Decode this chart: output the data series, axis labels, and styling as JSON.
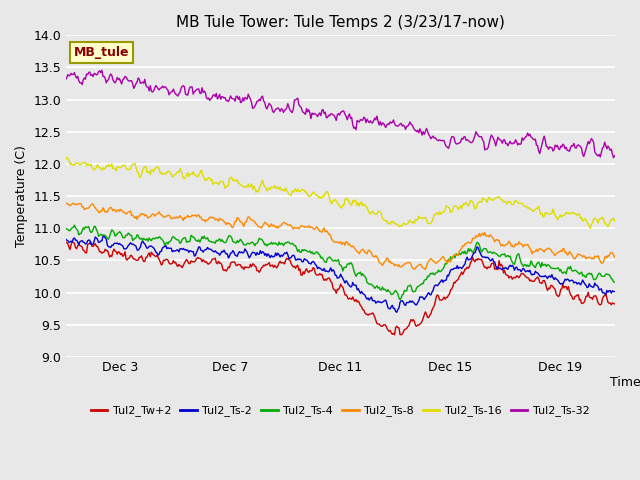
{
  "title": "MB Tule Tower: Tule Temps 2 (3/23/17-now)",
  "xlabel": "Time",
  "ylabel": "Temperature (C)",
  "ylim": [
    9.0,
    14.0
  ],
  "yticks": [
    9.0,
    9.5,
    10.0,
    10.5,
    11.0,
    11.5,
    12.0,
    12.5,
    13.0,
    13.5,
    14.0
  ],
  "xtick_labels": [
    "Dec 3",
    "Dec 7",
    "Dec 11",
    "Dec 15",
    "Dec 19"
  ],
  "xtick_positions": [
    2,
    6,
    10,
    14,
    18
  ],
  "n_points": 500,
  "fig_bg_color": "#e8e8e8",
  "plot_bg_color": "#e8e8e8",
  "grid_color": "#ffffff",
  "series": [
    {
      "label": "Tul2_Tw+2",
      "color": "#cc0000"
    },
    {
      "label": "Tul2_Ts-2",
      "color": "#0000cc"
    },
    {
      "label": "Tul2_Ts-4",
      "color": "#00aa00"
    },
    {
      "label": "Tul2_Ts-8",
      "color": "#ff8800"
    },
    {
      "label": "Tul2_Ts-16",
      "color": "#dddd00"
    },
    {
      "label": "Tul2_Ts-32",
      "color": "#aa00aa"
    }
  ],
  "legend_box_facecolor": "#ffffcc",
  "legend_box_edgecolor": "#999900",
  "legend_text": "MB_tule",
  "legend_text_color": "#880000",
  "title_fontsize": 11,
  "axis_fontsize": 9,
  "tick_fontsize": 9
}
